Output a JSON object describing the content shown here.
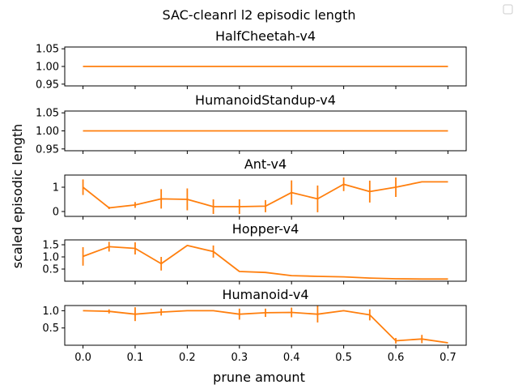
{
  "figure": {
    "suptitle": "SAC-cleanrl l2 episodic length",
    "ylabel": "scaled episodic length",
    "xlabel": "prune amount",
    "legend": {
      "placement": "top-right",
      "entries": [
        ""
      ]
    },
    "line_color": "#ff7f0e",
    "sharex_ticks": [
      "0.0",
      "0.1",
      "0.2",
      "0.3",
      "0.4",
      "0.5",
      "0.6",
      "0.7"
    ]
  },
  "chart_data": [
    {
      "type": "line",
      "title": "HalfCheetah-v4",
      "x": [
        0.0,
        0.7
      ],
      "y": [
        1.0,
        1.0
      ],
      "err": [
        0,
        0
      ],
      "ylim": [
        0.945,
        1.055
      ],
      "yticks": [
        0.95,
        1.0,
        1.05
      ],
      "ytick_labels": [
        "0.95",
        "1.00",
        "1.05"
      ],
      "grid": false
    },
    {
      "type": "line",
      "title": "HumanoidStandup-v4",
      "x": [
        0.0,
        0.7
      ],
      "y": [
        1.0,
        1.0
      ],
      "err": [
        0,
        0
      ],
      "ylim": [
        0.945,
        1.055
      ],
      "yticks": [
        0.95,
        1.0,
        1.05
      ],
      "ytick_labels": [
        "0.95",
        "1.00",
        "1.05"
      ],
      "grid": false
    },
    {
      "type": "line",
      "title": "Ant-v4",
      "x": [
        0.0,
        0.05,
        0.1,
        0.15,
        0.2,
        0.25,
        0.3,
        0.35,
        0.4,
        0.45,
        0.5,
        0.55,
        0.6,
        0.65,
        0.7
      ],
      "y": [
        1.0,
        0.15,
        0.27,
        0.52,
        0.5,
        0.2,
        0.2,
        0.22,
        0.78,
        0.52,
        1.12,
        0.82,
        1.0,
        1.22,
        1.22
      ],
      "err": [
        0.32,
        0.05,
        0.12,
        0.4,
        0.45,
        0.3,
        0.3,
        0.25,
        0.5,
        0.55,
        0.28,
        0.45,
        0.4,
        0.0,
        0.0
      ],
      "ylim": [
        -0.2,
        1.5
      ],
      "yticks": [
        0,
        1
      ],
      "ytick_labels": [
        "0",
        "1"
      ],
      "grid": false
    },
    {
      "type": "line",
      "title": "Hopper-v4",
      "x": [
        0.0,
        0.05,
        0.1,
        0.15,
        0.2,
        0.25,
        0.3,
        0.35,
        0.4,
        0.45,
        0.5,
        0.55,
        0.6,
        0.65,
        0.7
      ],
      "y": [
        1.02,
        1.42,
        1.35,
        0.72,
        1.47,
        1.22,
        0.4,
        0.36,
        0.23,
        0.2,
        0.18,
        0.13,
        0.1,
        0.09,
        0.09
      ],
      "err": [
        0.38,
        0.2,
        0.25,
        0.28,
        0.0,
        0.25,
        0.0,
        0.0,
        0.0,
        0.0,
        0.0,
        0.0,
        0.0,
        0.0,
        0.0
      ],
      "ylim": [
        0.0,
        1.7
      ],
      "yticks": [
        0.5,
        1.0,
        1.5
      ],
      "ytick_labels": [
        "0.5",
        "1.0",
        "1.5"
      ],
      "grid": false
    },
    {
      "type": "line",
      "title": "Humanoid-v4",
      "x": [
        0.0,
        0.05,
        0.1,
        0.15,
        0.2,
        0.25,
        0.3,
        0.35,
        0.4,
        0.45,
        0.5,
        0.55,
        0.6,
        0.65,
        0.7
      ],
      "y": [
        1.0,
        0.98,
        0.9,
        0.96,
        1.0,
        1.0,
        0.9,
        0.94,
        0.95,
        0.9,
        1.0,
        0.88,
        0.13,
        0.18,
        0.07
      ],
      "err": [
        0.0,
        0.06,
        0.2,
        0.1,
        0.0,
        0.0,
        0.16,
        0.12,
        0.14,
        0.24,
        0.0,
        0.16,
        0.08,
        0.12,
        0.0
      ],
      "ylim": [
        0.0,
        1.15
      ],
      "yticks": [
        0.5,
        1.0
      ],
      "ytick_labels": [
        "0.5",
        "1.0"
      ],
      "grid": false
    }
  ]
}
